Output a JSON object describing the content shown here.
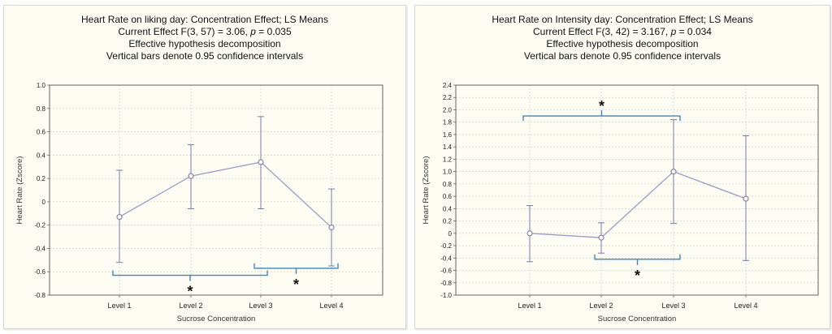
{
  "chart_data": [
    {
      "type": "line",
      "title": "Heart Rate on liking day: Concentration Effect; LS Means",
      "effect_prefix": "Current Effect F(3, 57) = 3.06,",
      "p_symbol": "p",
      "p_value": "= 0.035",
      "subtitle_line3": "Effective hypothesis decomposition",
      "subtitle_line4": "Vertical bars denote 0.95 confidence intervals",
      "xlabel": "Sucrose Concentration",
      "ylabel": "Heart Rate (Zscore)",
      "categories": [
        "Level 1",
        "Level 2",
        "Level 3",
        "Level 4"
      ],
      "values": [
        -0.13,
        0.22,
        0.34,
        -0.22
      ],
      "ci_low": [
        -0.52,
        -0.06,
        -0.06,
        -0.55
      ],
      "ci_high": [
        0.27,
        0.49,
        0.73,
        0.11
      ],
      "ylim": [
        -0.8,
        1.0
      ],
      "yticks": [
        "1.0",
        "0.8",
        "0.6",
        "0.4",
        "0.2",
        "0",
        "-0.2",
        "-0.4",
        "-0.6",
        "-0.8"
      ],
      "grid": true,
      "colors": {
        "line": "#9c9cc8",
        "marker": "#7a7aa8",
        "bracket": "#3f86bd"
      },
      "annotations": [
        {
          "label": "*",
          "from": "Level 1",
          "to": "Level 3",
          "y": -0.63,
          "side": "below"
        },
        {
          "label": "*",
          "from": "Level 3",
          "to": "Level 4",
          "y": -0.57,
          "side": "below"
        }
      ]
    },
    {
      "type": "line",
      "title": "Heart Rate on Intensity day: Concentration Effect; LS Means",
      "effect_prefix": "Current Effect F(3, 42) = 3.167,",
      "p_symbol": "p",
      "p_value": "= 0.034",
      "subtitle_line3": "Effective hypothesis decomposition",
      "subtitle_line4": "Vertical bars denote 0.95 confidence intervals",
      "xlabel": "Sucrose Concentration",
      "ylabel": "Heart Rate (Zscore)",
      "categories": [
        "Level 1",
        "Level 2",
        "Level 3",
        "Level 4"
      ],
      "values": [
        0.0,
        -0.07,
        1.0,
        0.56
      ],
      "ci_low": [
        -0.46,
        -0.32,
        0.16,
        -0.44
      ],
      "ci_high": [
        0.45,
        0.17,
        1.84,
        1.58
      ],
      "ylim": [
        -1.0,
        2.4
      ],
      "yticks": [
        "2.4",
        "2.2",
        "2.0",
        "1.8",
        "1.6",
        "1.4",
        "1.2",
        "1.0",
        "0.8",
        "0.6",
        "0.4",
        "0.2",
        "0",
        "-0.2",
        "-0.4",
        "-0.6",
        "-0.8",
        "-1.0"
      ],
      "grid": true,
      "colors": {
        "line": "#9c9cc8",
        "marker": "#7a7aa8",
        "bracket": "#3f86bd"
      },
      "annotations": [
        {
          "label": "*",
          "from": "Level 1",
          "to": "Level 3",
          "y": 1.9,
          "side": "above"
        },
        {
          "label": "*",
          "from": "Level 2",
          "to": "Level 3",
          "y": -0.42,
          "side": "below"
        }
      ]
    }
  ]
}
